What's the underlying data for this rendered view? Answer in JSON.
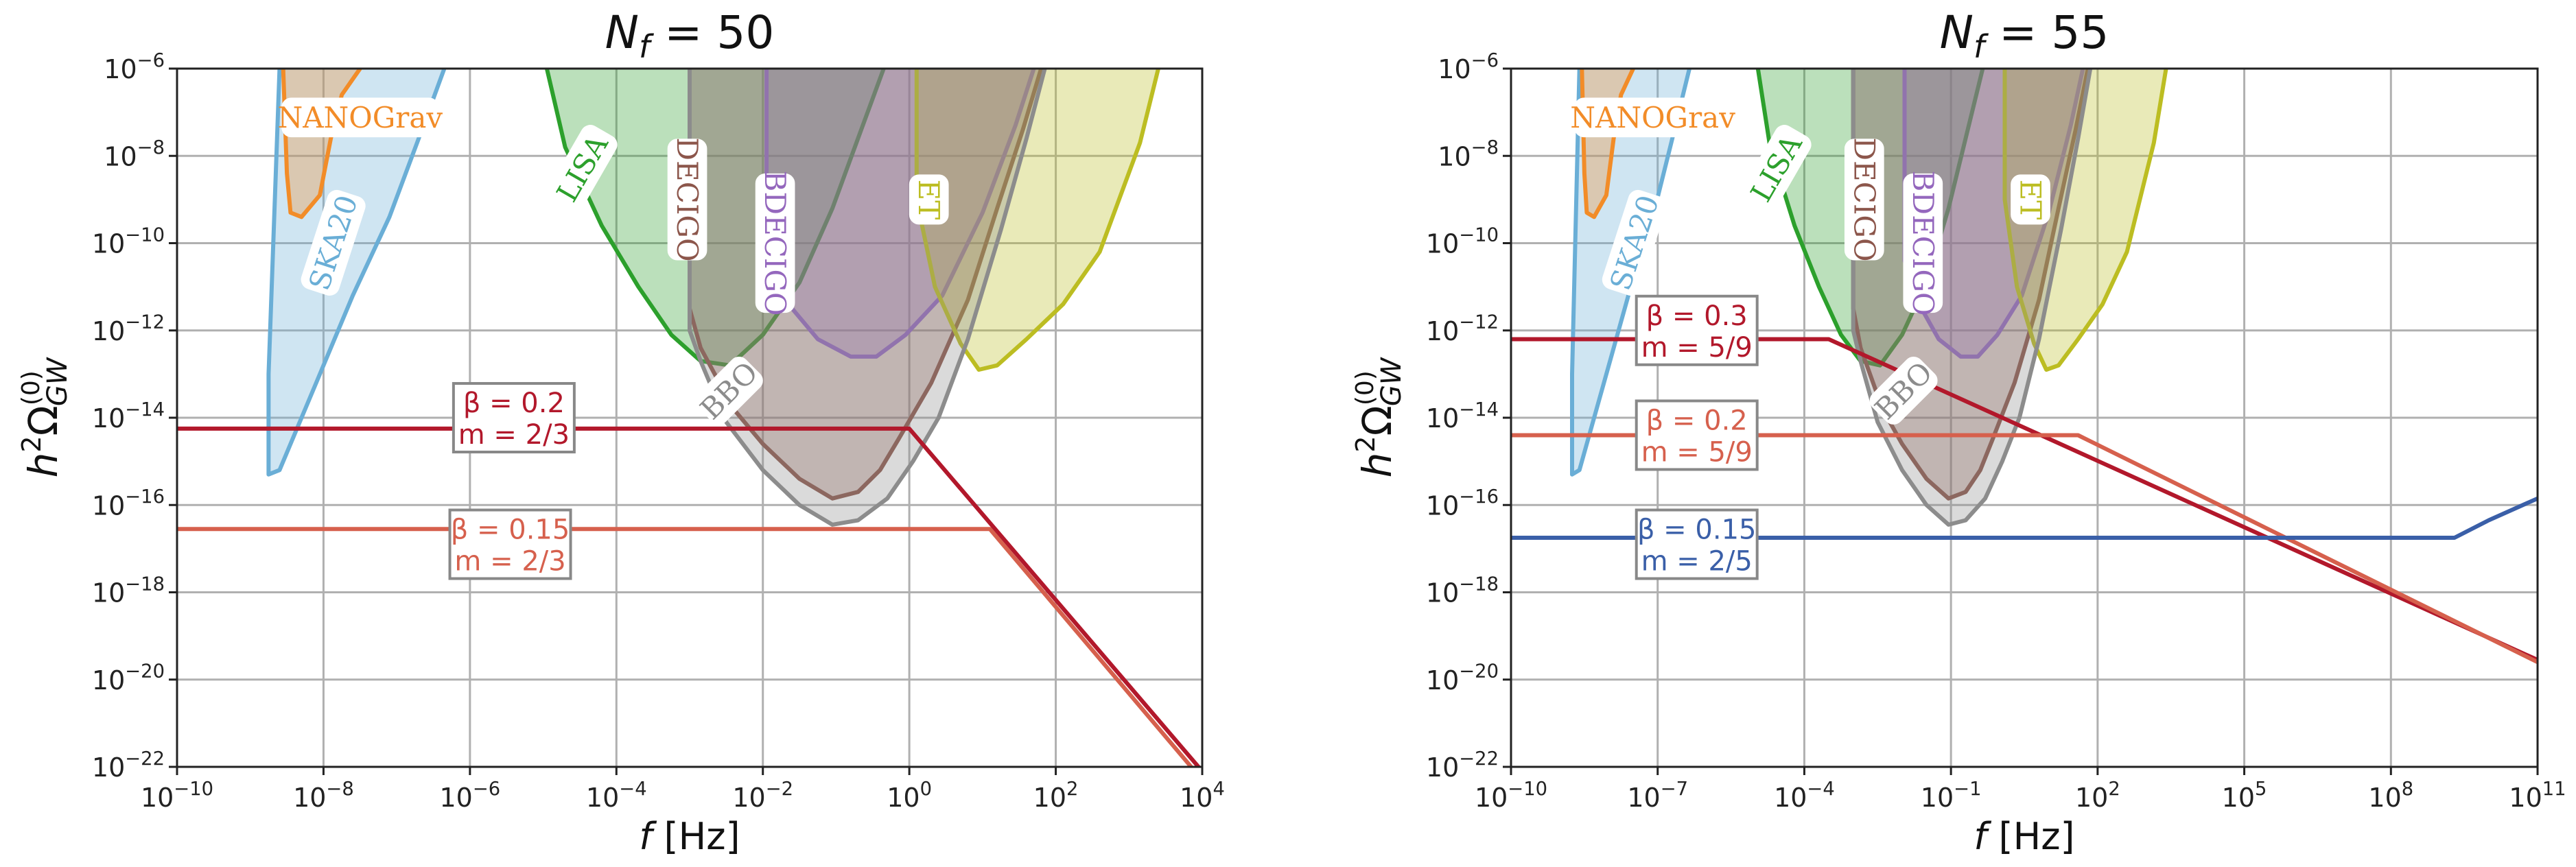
{
  "colors": {
    "ska": "#6aaed6",
    "nanograv": "#f28c28",
    "lisa": "#2ca02c",
    "decigo": "#8c564b",
    "bdecigo": "#9467bd",
    "et": "#bcbd22",
    "bbo": "#8c8c8c",
    "red_dark": "#b2182b",
    "red_light": "#d6604d",
    "blue": "#3a5fa8",
    "grid": "#b0b0b0"
  },
  "chart_data": [
    {
      "type": "line",
      "title": "N_f = 50",
      "title_main": "N",
      "title_sub": "f",
      "title_rest": " = 50",
      "xlabel": "f [Hz]",
      "ylabel": "h²Ω_GW^(0)",
      "xscale": "log",
      "yscale": "log",
      "xlim_exp": [
        -10,
        4
      ],
      "ylim_exp": [
        -22,
        -6
      ],
      "xticks_exp": [
        -10,
        -8,
        -6,
        -4,
        -2,
        0,
        2,
        4
      ],
      "yticks_exp": [
        -22,
        -20,
        -18,
        -16,
        -14,
        -12,
        -10,
        -8,
        -6
      ],
      "grid": true,
      "detectors": [
        {
          "name": "SKA20",
          "color_key": "ska",
          "label_at": [
            -7.85,
            -10.0
          ],
          "label_rot": -72,
          "outline": [
            [
              -8.6,
              -6
            ],
            [
              -8.75,
              -13
            ],
            [
              -8.75,
              -15.3
            ],
            [
              -8.6,
              -15.2
            ],
            [
              -8.1,
              -13.2
            ],
            [
              -7.6,
              -11.2
            ],
            [
              -7.1,
              -9.4
            ],
            [
              -6.7,
              -7.6
            ],
            [
              -6.35,
              -6
            ]
          ]
        },
        {
          "name": "NANOGrav",
          "color_key": "nanograv",
          "label_at": [
            -7.5,
            -7.15
          ],
          "label_rot": 0,
          "outline": [
            [
              -8.55,
              -6
            ],
            [
              -8.5,
              -8.4
            ],
            [
              -8.45,
              -9.3
            ],
            [
              -8.3,
              -9.4
            ],
            [
              -8.05,
              -8.9
            ],
            [
              -7.9,
              -7.6
            ],
            [
              -7.75,
              -6.6
            ],
            [
              -7.5,
              -6
            ]
          ]
        },
        {
          "name": "LISA",
          "color_key": "lisa",
          "label_at": [
            -4.45,
            -8.3
          ],
          "label_rot": -60,
          "outline": [
            [
              -4.95,
              -6
            ],
            [
              -4.7,
              -7.8
            ],
            [
              -4.2,
              -9.6
            ],
            [
              -3.7,
              -11.0
            ],
            [
              -3.25,
              -12.1
            ],
            [
              -2.85,
              -12.7
            ],
            [
              -2.45,
              -12.8
            ],
            [
              -2.0,
              -12.1
            ],
            [
              -1.5,
              -10.9
            ],
            [
              -1.05,
              -9.2
            ],
            [
              -0.7,
              -7.6
            ],
            [
              -0.35,
              -6
            ]
          ]
        },
        {
          "name": "DECIGO",
          "color_key": "decigo",
          "label_at": [
            -3.05,
            -9.0
          ],
          "label_rot": 90,
          "outline": [
            [
              -3.0,
              -6
            ],
            [
              -3.0,
              -11.5
            ],
            [
              -2.85,
              -12.4
            ],
            [
              -2.4,
              -13.8
            ],
            [
              -2.0,
              -14.6
            ],
            [
              -1.5,
              -15.4
            ],
            [
              -1.05,
              -15.85
            ],
            [
              -0.7,
              -15.7
            ],
            [
              -0.4,
              -15.2
            ],
            [
              -0.15,
              -14.5
            ],
            [
              0.3,
              -13.2
            ],
            [
              0.8,
              -11.3
            ],
            [
              1.2,
              -9.2
            ],
            [
              1.55,
              -7.4
            ],
            [
              1.8,
              -6
            ]
          ]
        },
        {
          "name": "BDECIGO",
          "color_key": "bdecigo",
          "label_at": [
            -1.85,
            -10.0
          ],
          "label_rot": 90,
          "outline": [
            [
              -1.95,
              -6
            ],
            [
              -1.95,
              -10.4
            ],
            [
              -1.65,
              -11.4
            ],
            [
              -1.25,
              -12.2
            ],
            [
              -0.8,
              -12.6
            ],
            [
              -0.45,
              -12.6
            ],
            [
              -0.05,
              -12.1
            ],
            [
              0.45,
              -11.2
            ],
            [
              1.0,
              -9.3
            ],
            [
              1.45,
              -7.3
            ],
            [
              1.7,
              -6
            ]
          ]
        },
        {
          "name": "ET",
          "color_key": "et",
          "label_at": [
            0.25,
            -9.0
          ],
          "label_rot": 90,
          "outline": [
            [
              0.1,
              -6
            ],
            [
              0.1,
              -9.0
            ],
            [
              0.35,
              -11.0
            ],
            [
              0.7,
              -12.3
            ],
            [
              0.95,
              -12.9
            ],
            [
              1.2,
              -12.8
            ],
            [
              1.6,
              -12.2
            ],
            [
              2.1,
              -11.4
            ],
            [
              2.6,
              -10.2
            ],
            [
              3.15,
              -7.7
            ],
            [
              3.4,
              -6
            ]
          ]
        },
        {
          "name": "BBO",
          "color_key": "bbo",
          "label_at": [
            -2.45,
            -13.4
          ],
          "label_rot": -45,
          "outline": [
            [
              -3.0,
              -6
            ],
            [
              -3.0,
              -12.0
            ],
            [
              -2.85,
              -12.7
            ],
            [
              -2.5,
              -14.1
            ],
            [
              -2.0,
              -15.2
            ],
            [
              -1.5,
              -16.0
            ],
            [
              -1.05,
              -16.45
            ],
            [
              -0.7,
              -16.35
            ],
            [
              -0.3,
              -15.85
            ],
            [
              0.05,
              -15.0
            ],
            [
              0.4,
              -14.0
            ],
            [
              0.8,
              -12.2
            ],
            [
              1.25,
              -9.7
            ],
            [
              1.6,
              -7.6
            ],
            [
              1.85,
              -6
            ]
          ]
        }
      ],
      "series": [
        {
          "name": "β = 0.2 / m = 2/3",
          "color_key": "red_dark",
          "points": [
            [
              -10,
              -14.25
            ],
            [
              0.0,
              -14.25
            ],
            [
              4,
              -22.1
            ]
          ]
        },
        {
          "name": "β = 0.15 / m = 2/3",
          "color_key": "red_light",
          "points": [
            [
              -10,
              -16.55
            ],
            [
              1.1,
              -16.55
            ],
            [
              4,
              -22.3
            ]
          ]
        }
      ],
      "annotations": [
        {
          "line1": "β = 0.2",
          "line2": "m = 2/3",
          "color_key": "red_dark",
          "at": [
            -5.4,
            -14.0
          ]
        },
        {
          "line1": "β = 0.15",
          "line2": "m = 2/3",
          "color_key": "red_light",
          "at": [
            -5.45,
            -16.9
          ]
        }
      ]
    },
    {
      "type": "line",
      "title": "N_f = 55",
      "title_main": "N",
      "title_sub": "f",
      "title_rest": " = 55",
      "xlabel": "f [Hz]",
      "ylabel": "h²Ω_GW^(0)",
      "xscale": "log",
      "yscale": "log",
      "xlim_exp": [
        -10,
        11
      ],
      "ylim_exp": [
        -22,
        -6
      ],
      "xticks_exp": [
        -10,
        -7,
        -4,
        -1,
        2,
        5,
        8,
        11
      ],
      "yticks_exp": [
        -22,
        -20,
        -18,
        -16,
        -14,
        -12,
        -10,
        -8,
        -6
      ],
      "grid": true,
      "detectors": [
        {
          "name": "SKA20",
          "color_key": "ska",
          "label_at": [
            -7.45,
            -10.0
          ],
          "label_rot": -72,
          "outline": [
            [
              -8.6,
              -6
            ],
            [
              -8.75,
              -13
            ],
            [
              -8.75,
              -15.3
            ],
            [
              -8.6,
              -15.2
            ],
            [
              -8.1,
              -13.2
            ],
            [
              -7.6,
              -11.2
            ],
            [
              -7.1,
              -9.4
            ],
            [
              -6.7,
              -7.6
            ],
            [
              -6.35,
              -6
            ]
          ]
        },
        {
          "name": "NANOGrav",
          "color_key": "nanograv",
          "label_at": [
            -7.1,
            -7.15
          ],
          "label_rot": 0,
          "outline": [
            [
              -8.55,
              -6
            ],
            [
              -8.5,
              -8.4
            ],
            [
              -8.45,
              -9.3
            ],
            [
              -8.3,
              -9.4
            ],
            [
              -8.05,
              -8.9
            ],
            [
              -7.9,
              -7.6
            ],
            [
              -7.75,
              -6.6
            ],
            [
              -7.5,
              -6
            ]
          ]
        },
        {
          "name": "LISA",
          "color_key": "lisa",
          "label_at": [
            -4.55,
            -8.3
          ],
          "label_rot": -60,
          "outline": [
            [
              -4.95,
              -6
            ],
            [
              -4.7,
              -7.8
            ],
            [
              -4.2,
              -9.6
            ],
            [
              -3.7,
              -11.0
            ],
            [
              -3.25,
              -12.1
            ],
            [
              -2.85,
              -12.7
            ],
            [
              -2.45,
              -12.8
            ],
            [
              -2.0,
              -12.1
            ],
            [
              -1.5,
              -10.9
            ],
            [
              -1.05,
              -9.2
            ],
            [
              -0.7,
              -7.6
            ],
            [
              -0.35,
              -6
            ]
          ]
        },
        {
          "name": "DECIGO",
          "color_key": "decigo",
          "label_at": [
            -2.8,
            -9.0
          ],
          "label_rot": 90,
          "outline": [
            [
              -3.0,
              -6
            ],
            [
              -3.0,
              -11.5
            ],
            [
              -2.85,
              -12.4
            ],
            [
              -2.4,
              -13.8
            ],
            [
              -2.0,
              -14.6
            ],
            [
              -1.5,
              -15.4
            ],
            [
              -1.05,
              -15.85
            ],
            [
              -0.7,
              -15.7
            ],
            [
              -0.4,
              -15.2
            ],
            [
              -0.15,
              -14.5
            ],
            [
              0.3,
              -13.2
            ],
            [
              0.8,
              -11.3
            ],
            [
              1.2,
              -9.2
            ],
            [
              1.55,
              -7.4
            ],
            [
              1.8,
              -6
            ]
          ]
        },
        {
          "name": "BDECIGO",
          "color_key": "bdecigo",
          "label_at": [
            -1.6,
            -10.0
          ],
          "label_rot": 90,
          "outline": [
            [
              -1.95,
              -6
            ],
            [
              -1.95,
              -10.4
            ],
            [
              -1.65,
              -11.4
            ],
            [
              -1.25,
              -12.2
            ],
            [
              -0.8,
              -12.6
            ],
            [
              -0.45,
              -12.6
            ],
            [
              -0.05,
              -12.1
            ],
            [
              0.45,
              -11.2
            ],
            [
              1.0,
              -9.3
            ],
            [
              1.45,
              -7.3
            ],
            [
              1.7,
              -6
            ]
          ]
        },
        {
          "name": "ET",
          "color_key": "et",
          "label_at": [
            0.6,
            -9.0
          ],
          "label_rot": 90,
          "outline": [
            [
              0.1,
              -6
            ],
            [
              0.1,
              -9.0
            ],
            [
              0.35,
              -11.0
            ],
            [
              0.7,
              -12.3
            ],
            [
              0.95,
              -12.9
            ],
            [
              1.2,
              -12.8
            ],
            [
              1.6,
              -12.2
            ],
            [
              2.1,
              -11.4
            ],
            [
              2.6,
              -10.2
            ],
            [
              3.15,
              -7.7
            ],
            [
              3.4,
              -6
            ]
          ]
        },
        {
          "name": "BBO",
          "color_key": "bbo",
          "label_at": [
            -1.95,
            -13.4
          ],
          "label_rot": -45,
          "outline": [
            [
              -3.0,
              -6
            ],
            [
              -3.0,
              -12.0
            ],
            [
              -2.85,
              -12.7
            ],
            [
              -2.5,
              -14.1
            ],
            [
              -2.0,
              -15.2
            ],
            [
              -1.5,
              -16.0
            ],
            [
              -1.05,
              -16.45
            ],
            [
              -0.7,
              -16.35
            ],
            [
              -0.3,
              -15.85
            ],
            [
              0.05,
              -15.0
            ],
            [
              0.4,
              -14.0
            ],
            [
              0.8,
              -12.2
            ],
            [
              1.25,
              -9.7
            ],
            [
              1.6,
              -7.6
            ],
            [
              1.85,
              -6
            ]
          ]
        }
      ],
      "series": [
        {
          "name": "β = 0.3 / m = 5/9",
          "color_key": "red_dark",
          "points": [
            [
              -10,
              -12.2
            ],
            [
              -3.5,
              -12.2
            ],
            [
              11,
              -19.55
            ]
          ]
        },
        {
          "name": "β = 0.2 / m = 5/9",
          "color_key": "red_light",
          "points": [
            [
              -10,
              -14.4
            ],
            [
              1.6,
              -14.4
            ],
            [
              11,
              -19.6
            ]
          ]
        },
        {
          "name": "β = 0.15 / m = 2/5",
          "color_key": "blue",
          "points": [
            [
              -10,
              -16.75
            ],
            [
              9.3,
              -16.75
            ],
            [
              10.0,
              -16.35
            ],
            [
              11,
              -15.85
            ]
          ]
        }
      ],
      "annotations": [
        {
          "line1": "β = 0.3",
          "line2": "m = 5/9",
          "color_key": "red_dark",
          "at": [
            -6.2,
            -12.0
          ]
        },
        {
          "line1": "β = 0.2",
          "line2": "m = 5/9",
          "color_key": "red_light",
          "at": [
            -6.2,
            -14.4
          ]
        },
        {
          "line1": "β = 0.15",
          "line2": "m = 2/5",
          "color_key": "blue",
          "at": [
            -6.2,
            -16.9
          ]
        }
      ]
    }
  ]
}
